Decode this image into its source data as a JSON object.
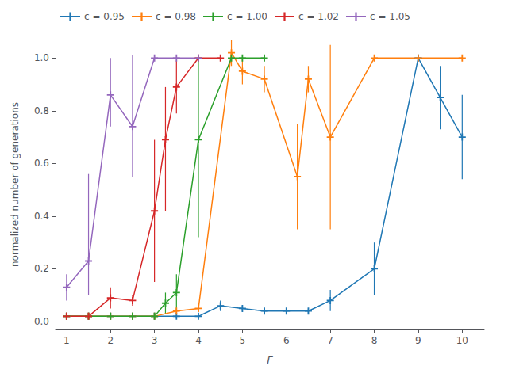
{
  "chart_data": {
    "type": "line",
    "xlabel": "F",
    "ylabel": "normalized number of generations",
    "marker": "plus",
    "legend": "upper left",
    "grid": false,
    "xlim": [
      0.75,
      10.5
    ],
    "ylim": [
      -0.03,
      1.07
    ],
    "xticks": [
      1,
      2,
      3,
      4,
      5,
      6,
      7,
      8,
      9,
      10
    ],
    "yticks": [
      {
        "value": 0.0,
        "label": "0.0"
      },
      0.2,
      0.4,
      0.6,
      0.8,
      {
        "value": 1.0,
        "label": "1.0"
      }
    ],
    "series": [
      {
        "name": "c = 0.95",
        "color": "#1f77b4",
        "x": [
          1.0,
          1.5,
          2.0,
          2.5,
          3.0,
          3.5,
          4.0,
          4.5,
          5.0,
          5.5,
          6.0,
          6.5,
          7.0,
          8.0,
          9.0,
          9.5,
          10.0
        ],
        "values": [
          0.02,
          0.02,
          0.02,
          0.02,
          0.02,
          0.02,
          0.02,
          0.06,
          0.05,
          0.04,
          0.04,
          0.04,
          0.08,
          0.2,
          1.0,
          0.85,
          0.7
        ],
        "yerr_lo": [
          0.005,
          0.005,
          0.005,
          0.005,
          0.005,
          0.005,
          0.005,
          0.02,
          0.01,
          0.01,
          0.01,
          0.01,
          0.04,
          0.1,
          0.0,
          0.12,
          0.16
        ],
        "yerr_hi": [
          0.005,
          0.005,
          0.005,
          0.005,
          0.005,
          0.005,
          0.005,
          0.02,
          0.01,
          0.01,
          0.01,
          0.01,
          0.04,
          0.1,
          0.0,
          0.12,
          0.16
        ]
      },
      {
        "name": "c = 0.98",
        "color": "#ff7f0e",
        "x": [
          1.0,
          1.5,
          2.0,
          2.5,
          3.0,
          3.5,
          4.0,
          4.75,
          5.0,
          5.5,
          6.25,
          6.5,
          7.0,
          8.0,
          9.0,
          10.0
        ],
        "values": [
          0.02,
          0.02,
          0.02,
          0.02,
          0.02,
          0.04,
          0.05,
          1.02,
          0.95,
          0.92,
          0.55,
          0.92,
          0.7,
          1.0,
          1.0,
          1.0
        ],
        "yerr_lo": [
          0.005,
          0.005,
          0.005,
          0.005,
          0.005,
          0.01,
          0.01,
          0.05,
          0.05,
          0.05,
          0.2,
          0.05,
          0.35,
          0.0,
          0.0,
          0.0
        ],
        "yerr_hi": [
          0.005,
          0.005,
          0.005,
          0.005,
          0.005,
          0.01,
          0.01,
          0.05,
          0.05,
          0.05,
          0.2,
          0.05,
          0.35,
          0.0,
          0.0,
          0.0
        ]
      },
      {
        "name": "c = 1.00",
        "color": "#2ca02c",
        "x": [
          1.0,
          1.5,
          2.0,
          2.5,
          3.0,
          3.25,
          3.5,
          4.0,
          4.75,
          5.0,
          5.5
        ],
        "values": [
          0.02,
          0.02,
          0.02,
          0.02,
          0.02,
          0.07,
          0.11,
          0.69,
          1.0,
          1.0,
          1.0
        ],
        "yerr_lo": [
          0.005,
          0.005,
          0.005,
          0.005,
          0.005,
          0.04,
          0.07,
          0.37,
          0.0,
          0.0,
          0.0
        ],
        "yerr_hi": [
          0.005,
          0.005,
          0.005,
          0.005,
          0.005,
          0.04,
          0.07,
          0.31,
          0.0,
          0.0,
          0.0
        ]
      },
      {
        "name": "c = 1.02",
        "color": "#d62728",
        "x": [
          1.0,
          1.5,
          2.0,
          2.5,
          3.0,
          3.25,
          3.5,
          4.0,
          4.5
        ],
        "values": [
          0.02,
          0.02,
          0.09,
          0.08,
          0.42,
          0.69,
          0.89,
          1.0,
          1.0
        ],
        "yerr_lo": [
          0.005,
          0.005,
          0.04,
          0.02,
          0.27,
          0.27,
          0.1,
          0.0,
          0.0
        ],
        "yerr_hi": [
          0.005,
          0.005,
          0.04,
          0.02,
          0.27,
          0.2,
          0.1,
          0.0,
          0.0
        ]
      },
      {
        "name": "c = 1.05",
        "color": "#9467bd",
        "x": [
          1.0,
          1.5,
          2.0,
          2.5,
          3.0,
          3.5,
          4.0
        ],
        "values": [
          0.13,
          0.23,
          0.86,
          0.74,
          1.0,
          1.0,
          1.0
        ],
        "yerr_lo": [
          0.05,
          0.13,
          0.12,
          0.19,
          0.0,
          0.0,
          0.0
        ],
        "yerr_hi": [
          0.05,
          0.33,
          0.14,
          0.27,
          0.0,
          0.0,
          0.0
        ]
      }
    ]
  }
}
